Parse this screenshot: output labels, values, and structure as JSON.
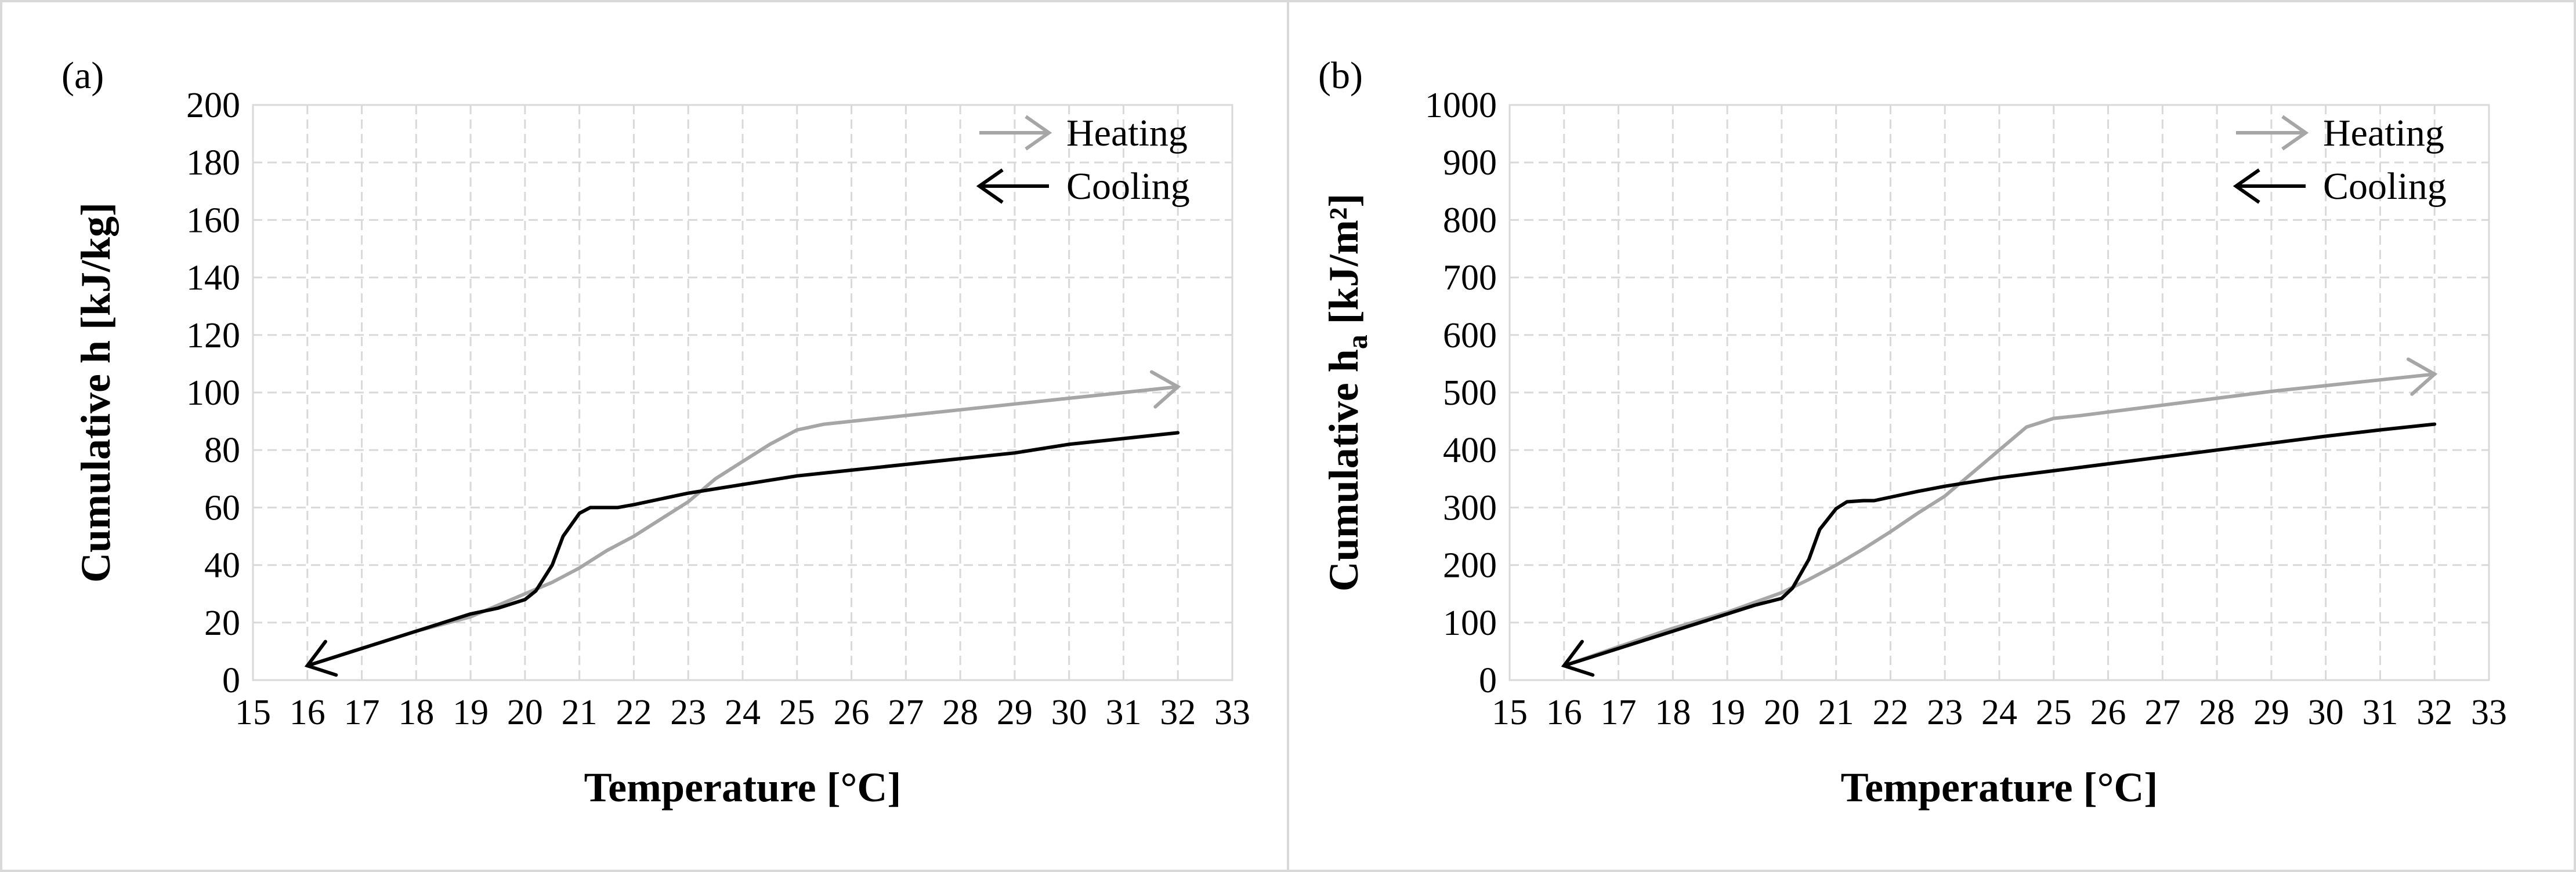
{
  "colors": {
    "heating": "#a6a6a6",
    "cooling": "#000000",
    "grid": "#d9d9d9",
    "frame": "#d9d9d9"
  },
  "chart_data": [
    {
      "type": "line",
      "panel_label": "(a)",
      "xlabel": "Temperature [°C]",
      "ylabel": "Cumulative h [kJ/kg]",
      "xlim": [
        15,
        33
      ],
      "ylim": [
        0,
        200
      ],
      "xticks": [
        15,
        16,
        17,
        18,
        19,
        20,
        21,
        22,
        23,
        24,
        25,
        26,
        27,
        28,
        29,
        30,
        31,
        32,
        33
      ],
      "yticks": [
        0,
        20,
        40,
        60,
        80,
        100,
        120,
        140,
        160,
        180,
        200
      ],
      "grid": true,
      "legend": "top-right",
      "series": [
        {
          "name": "Heating",
          "direction": "increasing",
          "color": "#a6a6a6",
          "x": [
            16,
            17,
            18,
            19,
            20,
            20.5,
            21,
            21.5,
            22,
            22.5,
            23,
            23.5,
            24,
            24.5,
            25,
            25.5,
            26,
            27,
            28,
            29,
            30,
            31,
            32
          ],
          "y": [
            5,
            11,
            17,
            22,
            30,
            34,
            39,
            45,
            50,
            56,
            62,
            70,
            76,
            82,
            87,
            89,
            90,
            92,
            94,
            96,
            98,
            100,
            102
          ]
        },
        {
          "name": "Cooling",
          "direction": "decreasing",
          "color": "#000000",
          "x": [
            32,
            31,
            30,
            29,
            28,
            27,
            26,
            25,
            24,
            23,
            22.5,
            22,
            21.7,
            21.5,
            21.2,
            21,
            20.7,
            20.5,
            20.2,
            20,
            19.5,
            19,
            18,
            17,
            16
          ],
          "y": [
            86,
            84,
            82,
            79,
            77,
            75,
            73,
            71,
            68,
            65,
            63,
            61,
            60,
            60,
            60,
            58,
            50,
            40,
            31,
            28,
            25,
            23,
            17,
            11,
            5
          ]
        }
      ]
    },
    {
      "type": "line",
      "panel_label": "(b)",
      "xlabel": "Temperature [°C]",
      "ylabel": "Cumulative h",
      "ylabel_sub": "a",
      "ylabel_unit": "[kJ/m²]",
      "xlim": [
        15,
        33
      ],
      "ylim": [
        0,
        1000
      ],
      "xticks": [
        15,
        16,
        17,
        18,
        19,
        20,
        21,
        22,
        23,
        24,
        25,
        26,
        27,
        28,
        29,
        30,
        31,
        32,
        33
      ],
      "yticks": [
        0,
        100,
        200,
        300,
        400,
        500,
        600,
        700,
        800,
        900,
        1000
      ],
      "grid": true,
      "legend": "top-right",
      "series": [
        {
          "name": "Heating",
          "direction": "increasing",
          "color": "#a6a6a6",
          "x": [
            16,
            17,
            18,
            19,
            20,
            20.5,
            21,
            21.5,
            22,
            22.5,
            23,
            23.5,
            24,
            24.5,
            25,
            25.5,
            26,
            27,
            28,
            29,
            30,
            31,
            32
          ],
          "y": [
            25,
            58,
            90,
            118,
            152,
            175,
            200,
            228,
            258,
            290,
            320,
            360,
            400,
            440,
            455,
            460,
            466,
            478,
            490,
            502,
            512,
            522,
            532
          ]
        },
        {
          "name": "Cooling",
          "direction": "decreasing",
          "color": "#000000",
          "x": [
            32,
            31,
            30,
            29,
            28,
            27,
            26,
            25,
            24,
            23,
            22.5,
            22,
            21.7,
            21.5,
            21.2,
            21,
            20.7,
            20.5,
            20.2,
            20,
            19.5,
            19,
            18,
            17,
            16
          ],
          "y": [
            445,
            435,
            424,
            412,
            400,
            388,
            376,
            364,
            352,
            337,
            328,
            318,
            312,
            312,
            310,
            298,
            262,
            210,
            160,
            142,
            130,
            115,
            85,
            55,
            25
          ]
        }
      ]
    }
  ]
}
